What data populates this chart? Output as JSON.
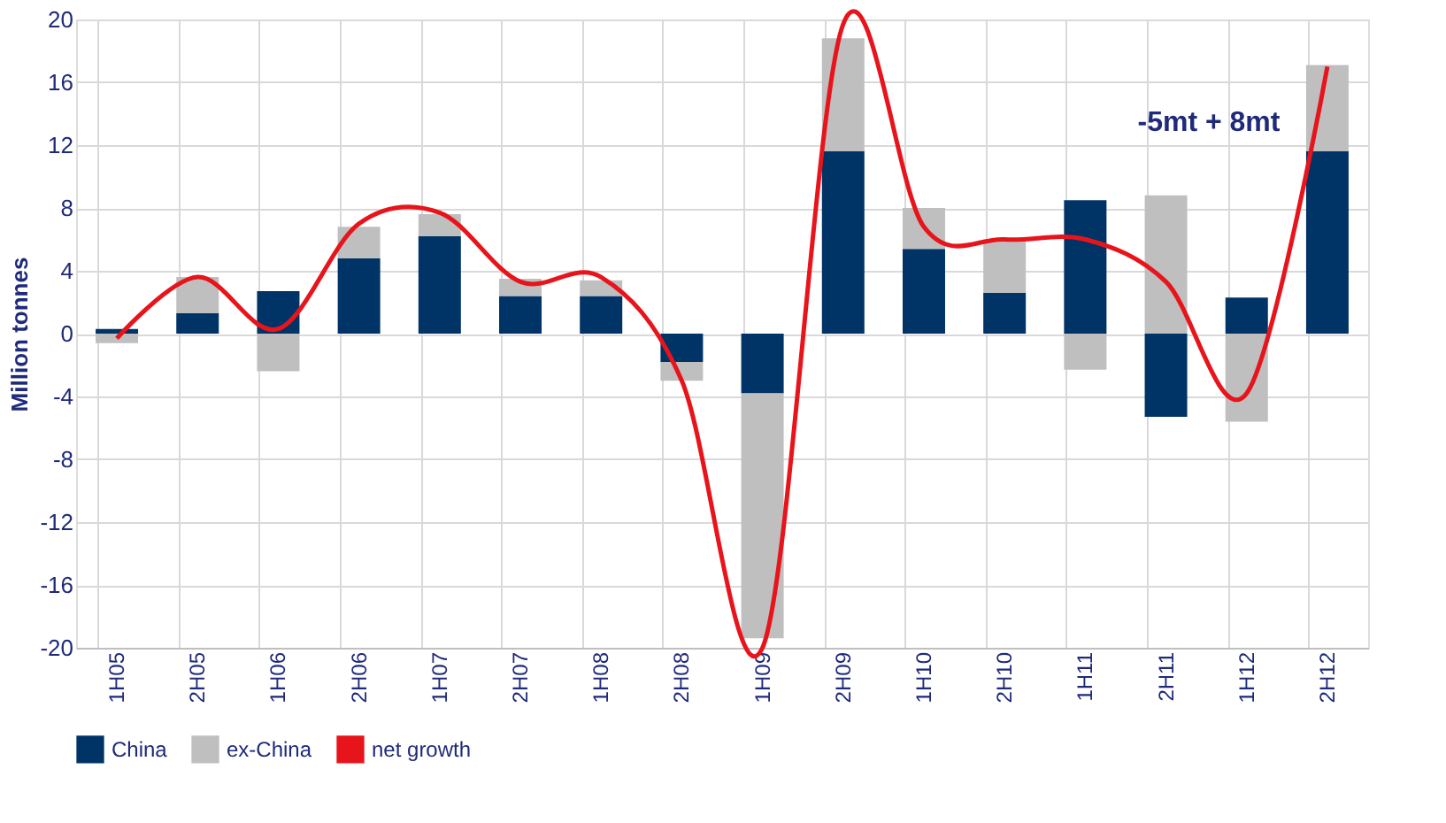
{
  "chart_data": {
    "type": "bar",
    "stacked": true,
    "ylabel": "Million tonnes",
    "categories": [
      "1H05",
      "2H05",
      "1H06",
      "2H06",
      "1H07",
      "2H07",
      "1H08",
      "2H08",
      "1H09",
      "2H09",
      "1H10",
      "2H10",
      "1H11",
      "2H11",
      "1H12",
      "2H12"
    ],
    "series": [
      {
        "name": "China",
        "color": "#003366",
        "values": [
          0.3,
          1.3,
          2.7,
          4.8,
          6.2,
          2.4,
          2.4,
          -1.8,
          -3.8,
          11.6,
          5.4,
          2.6,
          8.5,
          -5.3,
          2.3,
          11.6
        ]
      },
      {
        "name": "ex-China",
        "color": "#bfbfbf",
        "values": [
          -0.6,
          2.3,
          -2.4,
          2.0,
          1.4,
          1.1,
          1.0,
          -1.2,
          -15.6,
          7.2,
          2.6,
          3.4,
          -2.3,
          8.8,
          -5.6,
          5.5
        ]
      },
      {
        "name": "net growth",
        "type": "line",
        "color": "#e8141b",
        "values": [
          -0.3,
          3.6,
          0.3,
          7.0,
          7.7,
          3.3,
          3.6,
          -3.0,
          -20.0,
          19.7,
          6.8,
          6.0,
          6.0,
          3.3,
          -3.8,
          17.0
        ]
      }
    ],
    "ylim": [
      -20,
      20
    ],
    "yticks": [
      -20,
      -16,
      -12,
      -8,
      -4,
      0,
      4,
      8,
      12,
      16,
      20
    ],
    "grid": true,
    "legend": "bottom",
    "annotations": [
      "-5mt + 8mt"
    ]
  }
}
